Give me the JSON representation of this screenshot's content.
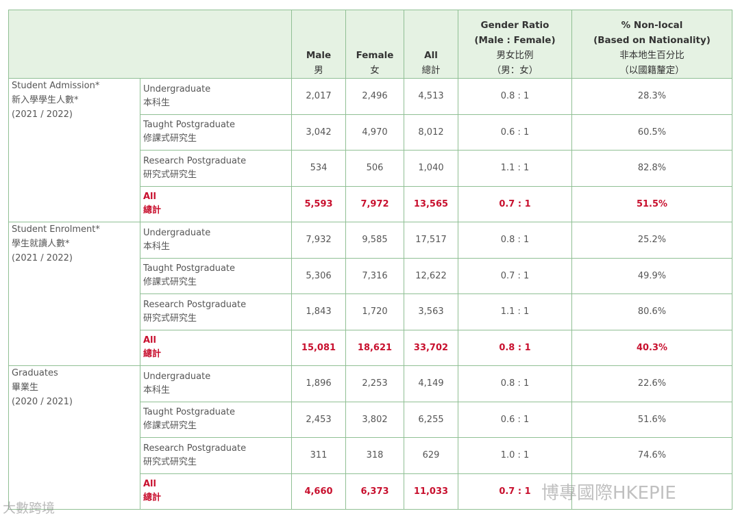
{
  "header": {
    "male": {
      "en": "Male",
      "zh": "男"
    },
    "female": {
      "en": "Female",
      "zh": "女"
    },
    "all": {
      "en": "All",
      "zh": "總計"
    },
    "ratio": {
      "en1": "Gender Ratio",
      "en2": "(Male : Female)",
      "zh1": "男女比例",
      "zh2": "（男：女）"
    },
    "nonlocal": {
      "en1": "% Non-local",
      "en2": "(Based on Nationality)",
      "zh1": "非本地生百分比",
      "zh2": "（以國籍釐定）"
    }
  },
  "groups": [
    {
      "title": "Student Admission*",
      "title_zh": "新入學學生人數*",
      "year": "(2021 / 2022)",
      "rows": [
        {
          "level": "Undergraduate",
          "level_zh": "本科生",
          "male": "2,017",
          "female": "2,496",
          "all": "4,513",
          "ratio": "0.8 : 1",
          "nonlocal": "28.3%"
        },
        {
          "level": "Taught Postgraduate",
          "level_zh": "修課式研究生",
          "male": "3,042",
          "female": "4,970",
          "all": "8,012",
          "ratio": "0.6 : 1",
          "nonlocal": "60.5%"
        },
        {
          "level": "Research Postgraduate",
          "level_zh": "研究式研究生",
          "male": "534",
          "female": "506",
          "all": "1,040",
          "ratio": "1.1 : 1",
          "nonlocal": "82.8%"
        },
        {
          "level": "All",
          "level_zh": "總計",
          "male": "5,593",
          "female": "7,972",
          "all": "13,565",
          "ratio": "0.7 : 1",
          "nonlocal": "51.5%"
        }
      ]
    },
    {
      "title": "Student Enrolment*",
      "title_zh": "學生就讀人數*",
      "year": "(2021 / 2022)",
      "rows": [
        {
          "level": "Undergraduate",
          "level_zh": "本科生",
          "male": "7,932",
          "female": "9,585",
          "all": "17,517",
          "ratio": "0.8 : 1",
          "nonlocal": "25.2%"
        },
        {
          "level": "Taught Postgraduate",
          "level_zh": "修課式研究生",
          "male": "5,306",
          "female": "7,316",
          "all": "12,622",
          "ratio": "0.7 : 1",
          "nonlocal": "49.9%"
        },
        {
          "level": "Research Postgraduate",
          "level_zh": "研究式研究生",
          "male": "1,843",
          "female": "1,720",
          "all": "3,563",
          "ratio": "1.1 : 1",
          "nonlocal": "80.6%"
        },
        {
          "level": "All",
          "level_zh": "總計",
          "male": "15,081",
          "female": "18,621",
          "all": "33,702",
          "ratio": "0.8 : 1",
          "nonlocal": "40.3%"
        }
      ]
    },
    {
      "title": "Graduates",
      "title_zh": "畢業生",
      "year": "(2020 / 2021)",
      "rows": [
        {
          "level": "Undergraduate",
          "level_zh": "本科生",
          "male": "1,896",
          "female": "2,253",
          "all": "4,149",
          "ratio": "0.8 : 1",
          "nonlocal": "22.6%"
        },
        {
          "level": "Taught Postgraduate",
          "level_zh": "修課式研究生",
          "male": "2,453",
          "female": "3,802",
          "all": "6,255",
          "ratio": "0.6 : 1",
          "nonlocal": "51.6%"
        },
        {
          "level": "Research Postgraduate",
          "level_zh": "研究式研究生",
          "male": "311",
          "female": "318",
          "all": "629",
          "ratio": "1.0 : 1",
          "nonlocal": "74.6%"
        },
        {
          "level": "All",
          "level_zh": "總計",
          "male": "4,660",
          "female": "6,373",
          "all": "11,033",
          "ratio": "0.7 : 1",
          "nonlocal": ""
        }
      ]
    }
  ],
  "watermarks": {
    "right": "博專國際HKEPIE",
    "left": "大數跨境"
  },
  "colors": {
    "header_bg": "#e5f2e3",
    "border": "#8fbf93",
    "total_text": "#c8102e"
  }
}
